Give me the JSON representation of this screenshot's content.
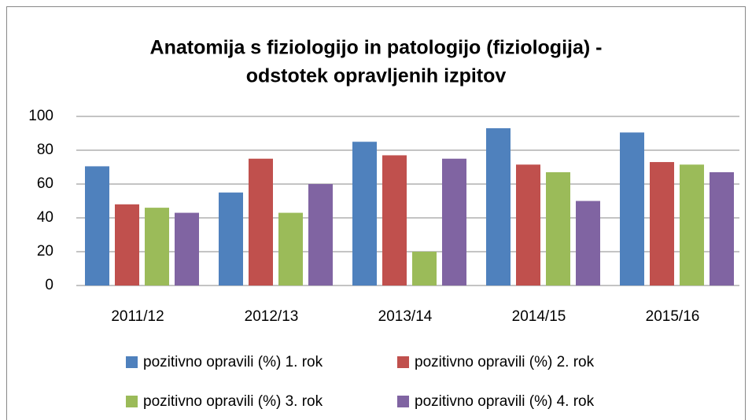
{
  "chart_data": {
    "type": "bar",
    "title": [
      "Anatomija s fiziologijo in patologijo (fiziologija) -",
      "odstotek opravljenih izpitov"
    ],
    "categories": [
      "2011/12",
      "2012/13",
      "2013/14",
      "2014/15",
      "2015/16"
    ],
    "series": [
      {
        "name": "pozitivno opravili (%) 1. rok",
        "color": "#4f81bd",
        "values": [
          70.5,
          55,
          85,
          93,
          90.5
        ]
      },
      {
        "name": "pozitivno opravili (%) 2. rok",
        "color": "#c0504d",
        "values": [
          48,
          75,
          77,
          71.5,
          73
        ]
      },
      {
        "name": "pozitivno opravili (%) 3. rok",
        "color": "#9bbb59",
        "values": [
          46,
          43,
          20,
          67,
          71.5
        ]
      },
      {
        "name": "pozitivno opravili (%) 4. rok",
        "color": "#8064a2",
        "values": [
          43,
          60,
          75,
          50,
          67
        ]
      }
    ],
    "ylim": [
      0,
      100
    ],
    "yticks": [
      0,
      20,
      40,
      60,
      80,
      100
    ],
    "grid": true,
    "legend": "bottom"
  }
}
